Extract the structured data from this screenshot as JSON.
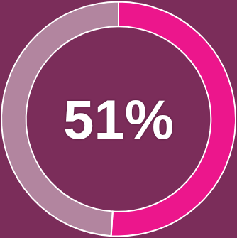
{
  "chart_data": {
    "type": "pie",
    "values": [
      51,
      49
    ],
    "colors": [
      "#ec168c",
      "rgba(255,255,255,0.42)"
    ],
    "annotations": [
      "51%"
    ]
  }
}
